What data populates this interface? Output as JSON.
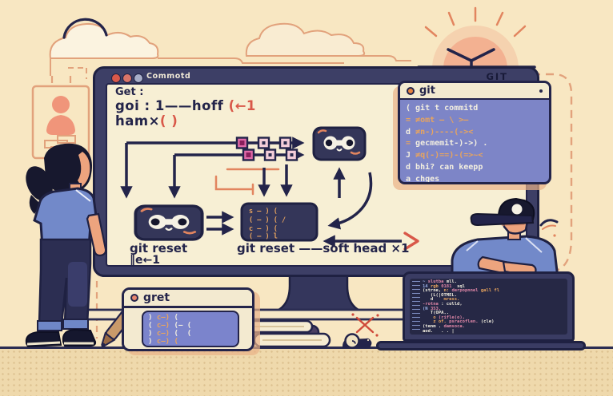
{
  "palette": {
    "bg": "#f8e7c2",
    "floor": "#efd9ac",
    "ink": "#23244a",
    "navy": "#3d3f66",
    "salmon": "#e2a27c",
    "red": "#d95849",
    "purple": "#7d85c7",
    "orange_code": "#e8a45e",
    "tee_blue": "#7289c9",
    "skin": "#eda47e"
  },
  "monitor": {
    "titlebar": {
      "title": "Commotd",
      "brand": "GIT"
    },
    "screen": {
      "heading": "Get :",
      "line2_text": "goi : 1——hoff ",
      "line2_accent": "(←1",
      "line3_text": "ham×",
      "line3_accent": "( )",
      "label_left": "git reset",
      "label_left_sub": "‖e←1",
      "label_center": "git reset ——soft head ×1",
      "code_box_lines": [
        "s — ) (",
        "( — ) (  /",
        "c — ) (",
        "( — ) l"
      ]
    }
  },
  "git_panel": {
    "title": "git",
    "lines": [
      [
        [
          "( git t commitd",
          "w"
        ]
      ],
      [
        [
          "= ",
          "o"
        ],
        [
          "≠omt — \\ >—",
          "o"
        ]
      ],
      [
        [
          "d ",
          "w"
        ],
        [
          "≠n-)----(-><",
          "o"
        ]
      ],
      [
        [
          "= ",
          "o"
        ],
        [
          "gecmemit-)->) .",
          "w"
        ]
      ],
      [
        [
          "J ",
          "w"
        ],
        [
          "≠q(-)==)-(=>~<",
          "o"
        ]
      ],
      [
        [
          "d ",
          "w"
        ],
        [
          "bhi? can keepp",
          "w"
        ]
      ],
      [
        [
          "a ",
          "w"
        ],
        [
          "chges",
          "w"
        ]
      ]
    ]
  },
  "gret_panel": {
    "title": "gret",
    "lines": [
      [
        [
          ") ",
          "w"
        ],
        [
          "c—) ",
          "o"
        ],
        [
          "(",
          "w"
        ]
      ],
      [
        [
          "( ",
          "w"
        ],
        [
          "c—) ",
          "o"
        ],
        [
          "(— (",
          "w"
        ]
      ],
      [
        [
          ") ",
          "w"
        ],
        [
          "c—) ",
          "o"
        ],
        [
          "(  (",
          "w"
        ]
      ],
      [
        [
          ") ",
          "w"
        ],
        [
          "c—) (",
          "o"
        ]
      ]
    ]
  },
  "laptop": {
    "lines": [
      [
        [
          "~ ",
          "b"
        ],
        [
          "slutba ",
          "p"
        ],
        [
          "mll.",
          "w"
        ]
      ],
      [
        [
          "14 ",
          "b"
        ],
        [
          "rgb ",
          "o"
        ],
        [
          "0181  ",
          "p"
        ],
        [
          "sql",
          "w"
        ]
      ],
      [
        [
          "(strne, ",
          "w"
        ],
        [
          "n: ",
          "o"
        ],
        [
          "derpopnnel ",
          "p"
        ],
        [
          "gall fl",
          "o"
        ]
      ],
      [
        [
          "   (L(|OTMEL.",
          "w"
        ]
      ],
      [
        [
          "   d    ",
          "w"
        ],
        [
          "mress.",
          "o"
        ]
      ],
      [
        [
          "-rotna ",
          "p"
        ],
        [
          ": colld,",
          "w"
        ]
      ],
      [
        [
          "(N ",
          "b"
        ],
        [
          "353.",
          "p"
        ]
      ],
      [
        [
          "   T(OPA..",
          "w"
        ]
      ],
      [
        [
          "    o ",
          "o"
        ],
        [
          "(rifle(o),",
          "p"
        ]
      ],
      [
        [
          "    z of. ",
          "o"
        ],
        [
          "psracoflen. ",
          "p"
        ],
        [
          "(cle)",
          "w"
        ]
      ],
      [
        [
          "(tenm . ",
          "w"
        ],
        [
          "damsoca.",
          "p"
        ]
      ],
      [
        [
          "aod.   . . |",
          "w"
        ]
      ]
    ]
  }
}
